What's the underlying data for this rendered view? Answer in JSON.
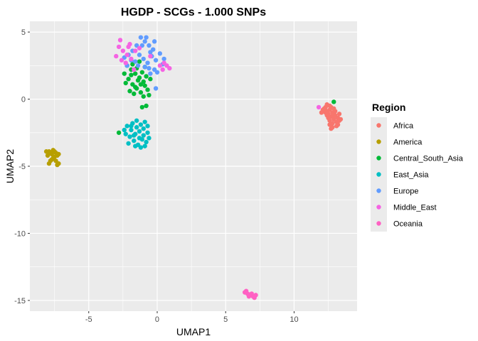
{
  "chart_data": {
    "type": "scatter",
    "title": "HGDP - SCGs - 1.000 SNPs",
    "xlabel": "UMAP1",
    "ylabel": "UMAP2",
    "xlim": [
      -9.3,
      14.6
    ],
    "ylim": [
      -15.8,
      5.8
    ],
    "xticks": [
      -5,
      0,
      5,
      10
    ],
    "yticks": [
      -15,
      -10,
      -5,
      0,
      5
    ],
    "xtick_labels": [
      "-5",
      "0",
      "5",
      "10"
    ],
    "ytick_labels": [
      "-15",
      "-10",
      "-5",
      "0",
      "5"
    ],
    "grid": true,
    "legend": {
      "title": "Region",
      "position": "right"
    },
    "series": [
      {
        "name": "Africa",
        "color": "#F8766D",
        "points": [
          [
            12.2,
            -0.7
          ],
          [
            12.4,
            -0.9
          ],
          [
            12.6,
            -0.8
          ],
          [
            12.8,
            -1.0
          ],
          [
            13.0,
            -1.2
          ],
          [
            13.2,
            -1.4
          ],
          [
            12.5,
            -1.1
          ],
          [
            12.3,
            -0.6
          ],
          [
            12.7,
            -1.3
          ],
          [
            12.9,
            -1.5
          ],
          [
            13.1,
            -1.7
          ],
          [
            12.6,
            -1.9
          ],
          [
            12.8,
            -2.1
          ],
          [
            13.3,
            -1.6
          ],
          [
            12.4,
            -1.2
          ],
          [
            12.1,
            -0.8
          ],
          [
            12.0,
            -1.0
          ],
          [
            12.9,
            -0.7
          ],
          [
            13.0,
            -0.9
          ],
          [
            12.7,
            -0.6
          ],
          [
            12.5,
            -1.4
          ],
          [
            12.6,
            -1.6
          ],
          [
            12.8,
            -1.8
          ],
          [
            13.2,
            -1.9
          ],
          [
            13.1,
            -2.0
          ],
          [
            12.7,
            -2.2
          ],
          [
            12.4,
            -0.4
          ],
          [
            12.6,
            -0.5
          ],
          [
            13.3,
            -1.1
          ],
          [
            13.4,
            -1.5
          ],
          [
            12.9,
            -1.3
          ],
          [
            12.3,
            -1.0
          ]
        ]
      },
      {
        "name": "America",
        "color": "#B79F00",
        "points": [
          [
            -7.9,
            -3.9
          ],
          [
            -7.7,
            -4.1
          ],
          [
            -7.6,
            -3.8
          ],
          [
            -7.4,
            -4.0
          ],
          [
            -7.2,
            -4.1
          ],
          [
            -7.5,
            -4.3
          ],
          [
            -7.7,
            -4.5
          ],
          [
            -7.8,
            -4.6
          ],
          [
            -7.9,
            -4.8
          ],
          [
            -7.4,
            -4.6
          ],
          [
            -7.3,
            -4.9
          ],
          [
            -7.2,
            -4.8
          ],
          [
            -8.0,
            -4.2
          ],
          [
            -7.6,
            -4.4
          ],
          [
            -7.3,
            -4.2
          ],
          [
            -8.1,
            -3.9
          ],
          [
            -7.8,
            -4.0
          ],
          [
            -7.5,
            -3.9
          ]
        ]
      },
      {
        "name": "Central_South_Asia",
        "color": "#00BA38",
        "points": [
          [
            -2.2,
            2.5
          ],
          [
            -1.9,
            2.2
          ],
          [
            -1.6,
            1.9
          ],
          [
            -1.3,
            1.6
          ],
          [
            -1.0,
            1.3
          ],
          [
            -1.8,
            1.1
          ],
          [
            -1.5,
            0.8
          ],
          [
            -1.2,
            0.5
          ],
          [
            -0.9,
            1.0
          ],
          [
            -0.7,
            0.7
          ],
          [
            -2.0,
            0.6
          ],
          [
            -1.7,
            0.4
          ],
          [
            -1.4,
            1.4
          ],
          [
            -1.1,
            2.0
          ],
          [
            -0.8,
            1.7
          ],
          [
            -2.4,
            1.9
          ],
          [
            -2.1,
            1.5
          ],
          [
            -1.8,
            2.6
          ],
          [
            -1.3,
            2.8
          ],
          [
            -0.9,
            2.4
          ],
          [
            -0.6,
            0.3
          ],
          [
            -1.0,
            0.2
          ],
          [
            -1.6,
            0.9
          ],
          [
            -2.3,
            1.2
          ],
          [
            -0.5,
            1.5
          ],
          [
            -1.2,
            1.1
          ],
          [
            -1.5,
            2.3
          ],
          [
            -0.8,
            -0.5
          ],
          [
            -1.1,
            -0.6
          ],
          [
            -2.8,
            -2.5
          ],
          [
            12.9,
            -0.2
          ],
          [
            -1.9,
            1.8
          ]
        ]
      },
      {
        "name": "East_Asia",
        "color": "#00BFC4",
        "points": [
          [
            -2.2,
            -2.0
          ],
          [
            -1.9,
            -2.3
          ],
          [
            -1.6,
            -2.6
          ],
          [
            -1.3,
            -2.9
          ],
          [
            -1.0,
            -2.2
          ],
          [
            -0.7,
            -2.5
          ],
          [
            -2.0,
            -2.8
          ],
          [
            -1.7,
            -3.1
          ],
          [
            -1.4,
            -3.4
          ],
          [
            -1.1,
            -3.0
          ],
          [
            -0.8,
            -3.2
          ],
          [
            -2.3,
            -2.6
          ],
          [
            -1.8,
            -1.8
          ],
          [
            -1.5,
            -1.6
          ],
          [
            -1.2,
            -1.9
          ],
          [
            -0.9,
            -1.7
          ],
          [
            -0.6,
            -2.9
          ],
          [
            -1.6,
            -3.5
          ],
          [
            -1.3,
            -2.4
          ],
          [
            -1.0,
            -2.7
          ],
          [
            -2.1,
            -3.3
          ],
          [
            -1.9,
            -2.0
          ],
          [
            -0.7,
            -2.0
          ],
          [
            -1.5,
            -2.1
          ],
          [
            -1.2,
            -3.6
          ],
          [
            -2.4,
            -2.3
          ],
          [
            -0.9,
            -3.5
          ],
          [
            -1.7,
            -2.7
          ]
        ]
      },
      {
        "name": "Europe",
        "color": "#619CFF",
        "points": [
          [
            -1.2,
            4.6
          ],
          [
            -0.9,
            4.3
          ],
          [
            -0.6,
            4.0
          ],
          [
            -0.3,
            3.7
          ],
          [
            -1.5,
            4.0
          ],
          [
            -1.8,
            3.6
          ],
          [
            -2.1,
            3.3
          ],
          [
            -1.3,
            3.3
          ],
          [
            -1.0,
            3.0
          ],
          [
            -0.7,
            2.7
          ],
          [
            -0.4,
            3.2
          ],
          [
            -0.1,
            2.9
          ],
          [
            0.2,
            3.4
          ],
          [
            0.4,
            2.6
          ],
          [
            -0.2,
            2.2
          ],
          [
            -0.5,
            1.9
          ],
          [
            -0.9,
            2.4
          ],
          [
            -1.6,
            2.8
          ],
          [
            -1.9,
            2.9
          ],
          [
            -2.4,
            3.1
          ],
          [
            -1.1,
            4.0
          ],
          [
            -0.8,
            4.6
          ],
          [
            -0.5,
            3.5
          ],
          [
            -0.2,
            4.3
          ],
          [
            0.0,
            2.0
          ],
          [
            -0.1,
            0.8
          ],
          [
            -2.2,
            2.5
          ],
          [
            -1.4,
            2.5
          ],
          [
            0.5,
            3.0
          ],
          [
            -0.6,
            2.3
          ]
        ]
      },
      {
        "name": "Middle_East",
        "color": "#F564E3",
        "points": [
          [
            -2.8,
            3.9
          ],
          [
            -2.5,
            3.6
          ],
          [
            -2.2,
            3.3
          ],
          [
            -1.9,
            3.0
          ],
          [
            -1.6,
            3.6
          ],
          [
            -2.0,
            4.1
          ],
          [
            -2.6,
            2.9
          ],
          [
            -3.0,
            3.2
          ],
          [
            -2.3,
            2.7
          ],
          [
            -1.3,
            3.8
          ],
          [
            0.2,
            2.5
          ],
          [
            0.5,
            2.7
          ],
          [
            0.7,
            2.5
          ],
          [
            0.9,
            2.3
          ],
          [
            -1.7,
            2.2
          ],
          [
            -2.7,
            4.4
          ],
          [
            -0.5,
            3.2
          ],
          [
            0.4,
            2.2
          ],
          [
            11.8,
            -0.6
          ],
          [
            -2.1,
            3.9
          ]
        ]
      },
      {
        "name": "Oceania",
        "color": "#FF61C3",
        "points": [
          [
            6.4,
            -14.4
          ],
          [
            6.6,
            -14.5
          ],
          [
            6.8,
            -14.6
          ],
          [
            7.0,
            -14.7
          ],
          [
            7.2,
            -14.6
          ],
          [
            6.5,
            -14.3
          ],
          [
            6.7,
            -14.7
          ],
          [
            6.9,
            -14.5
          ],
          [
            7.1,
            -14.8
          ]
        ]
      }
    ]
  }
}
